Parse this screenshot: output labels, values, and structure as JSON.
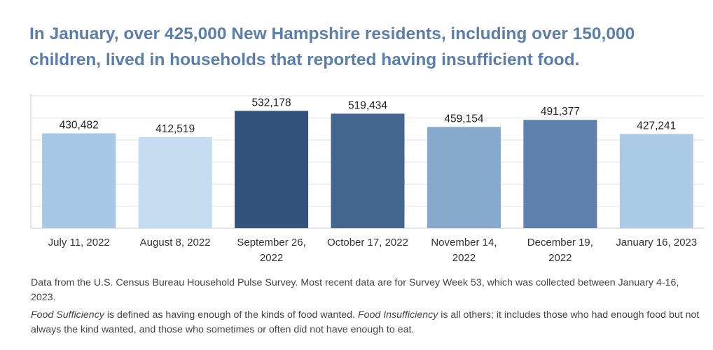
{
  "title": "In January, over 425,000 New Hampshire residents, including over 150,000 children, lived in households that reported having insufficient food.",
  "chart_data": {
    "type": "bar",
    "title": "",
    "xlabel": "",
    "ylabel": "",
    "ylim": [
      0,
      600000
    ],
    "grid": true,
    "categories": [
      [
        "July 11, 2022"
      ],
      [
        "August 8, 2022"
      ],
      [
        "September 26,",
        "2022"
      ],
      [
        "October 17, 2022"
      ],
      [
        "November 14,",
        "2022"
      ],
      [
        "December 19,",
        "2022"
      ],
      [
        "January 16, 2023"
      ]
    ],
    "values": [
      430482,
      412519,
      532178,
      519434,
      459154,
      491377,
      427241
    ],
    "value_labels": [
      "430,482",
      "412,519",
      "532,178",
      "519,434",
      "459,154",
      "491,377",
      "427,241"
    ],
    "colors": [
      "#a6c8e4",
      "#c3dcef",
      "#33527c",
      "#436690",
      "#86a9cc",
      "#5d80ac",
      "#abcbe6"
    ]
  },
  "notes": {
    "source": "Data from the  U.S. Census Bureau Household Pulse Survey. Most recent data are for Survey Week 53, which was collected between January 4-16, 2023.",
    "term1": "Food Sufficiency",
    "def1": " is defined  as having enough of the kinds of food wanted. ",
    "term2": "Food Insufficiency",
    "def2": " is all others; it includes those who had enough food  but not always the kind wanted, and those who sometimes or often did not have enough to eat."
  }
}
